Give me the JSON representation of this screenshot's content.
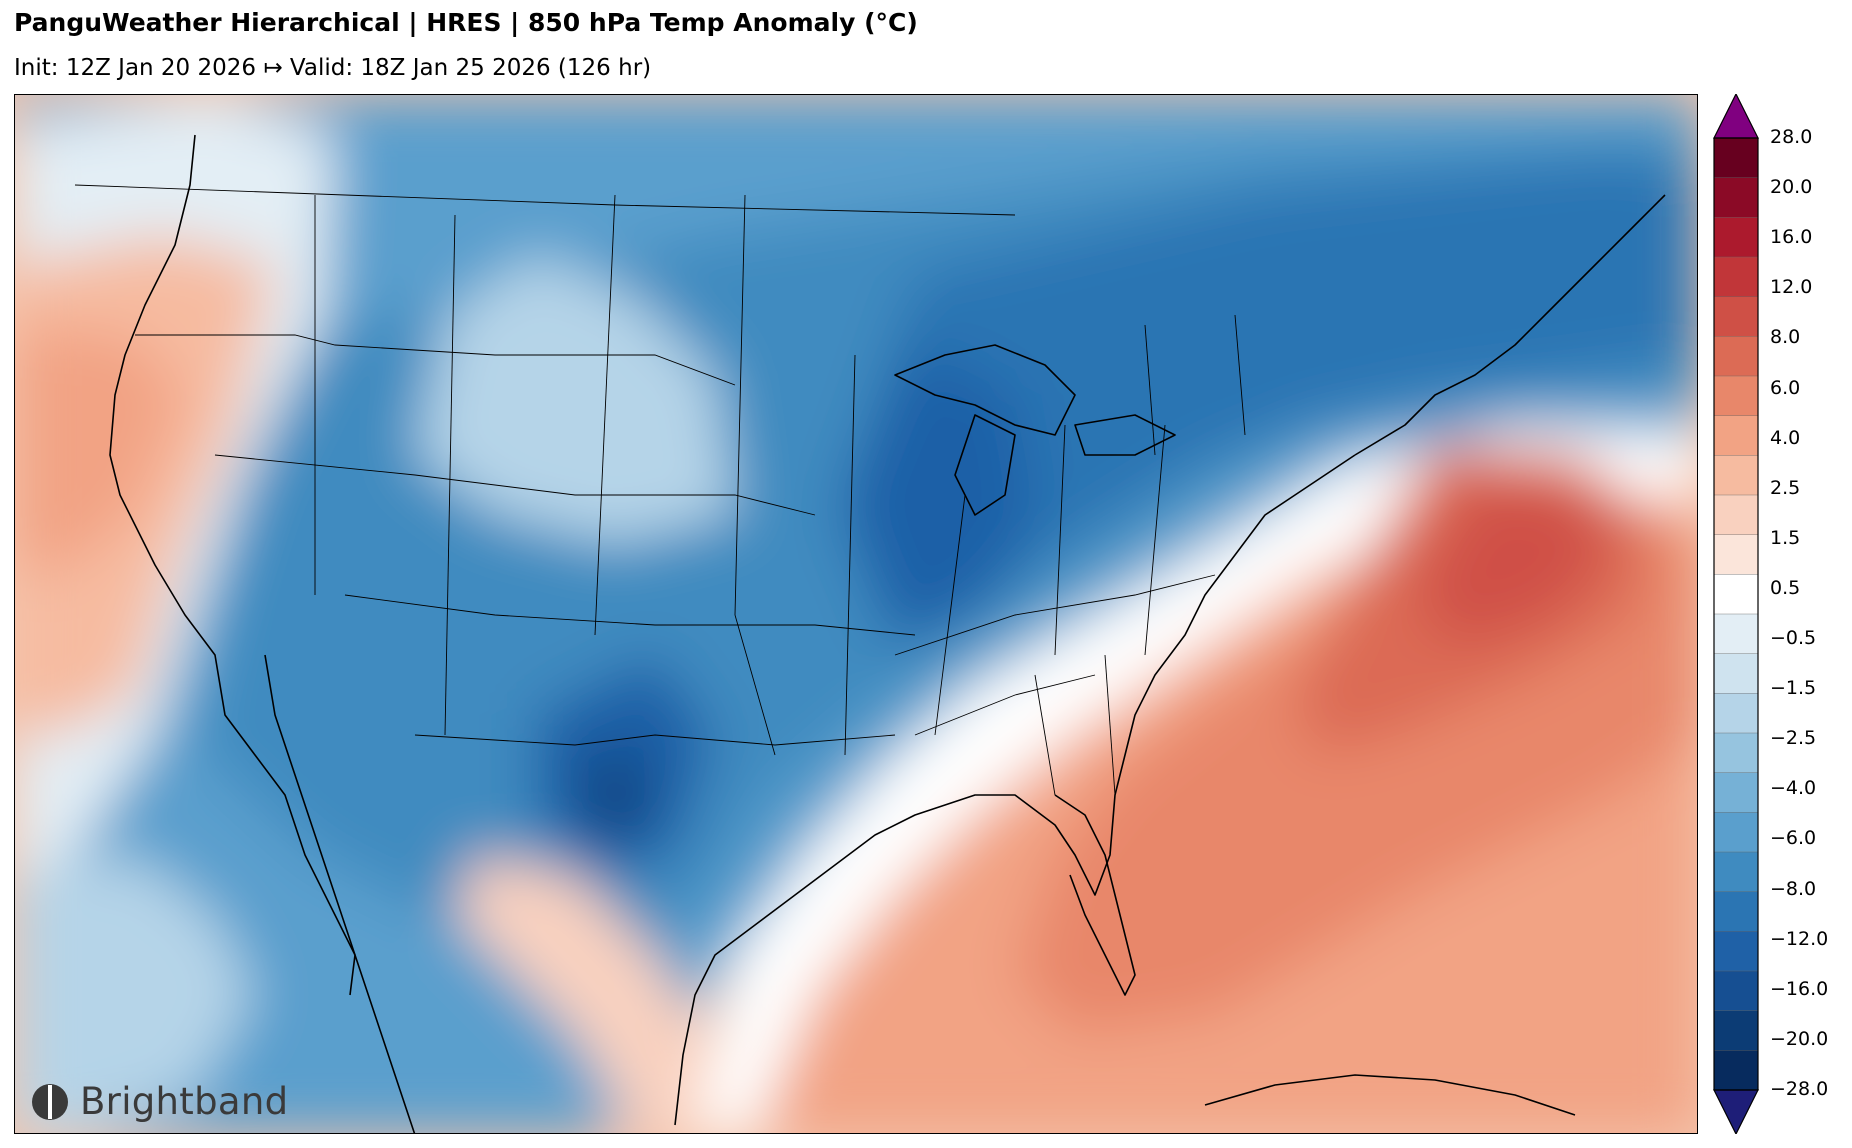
{
  "header": {
    "title": "PanguWeather Hierarchical | HRES | 850 hPa Temp Anomaly (°C)",
    "subtitle": "Init: 12Z Jan 20 2026 ↦ Valid: 18Z Jan 25 2026 (126 hr)"
  },
  "logo": {
    "name": "Brightband",
    "icon": "brightband-logo-icon"
  },
  "colorbar": {
    "tick_labels": [
      "28.0",
      "20.0",
      "16.0",
      "12.0",
      "8.0",
      "6.0",
      "4.0",
      "2.5",
      "1.5",
      "0.5",
      "−0.5",
      "−1.5",
      "−2.5",
      "−4.0",
      "−6.0",
      "−8.0",
      "−12.0",
      "−16.0",
      "−20.0",
      "−28.0"
    ],
    "colors_top_to_bottom": [
      "#67001f",
      "#8b0a26",
      "#ac1a2d",
      "#c13639",
      "#cf5046",
      "#dc6b55",
      "#e8876a",
      "#f2a384",
      "#f6bba0",
      "#f9d1bf",
      "#fbe5da",
      "#ffffff",
      "#e3eef5",
      "#cfe3ef",
      "#b5d4e8",
      "#96c4df",
      "#76b1d6",
      "#5a9fcd",
      "#3f8bc0",
      "#2b75b3",
      "#1f61a7",
      "#164f92",
      "#0c3c75",
      "#072b5e"
    ],
    "extend_max_color": "#800080",
    "extend_min_color": "#1e1e78"
  },
  "map": {
    "region": "Continental United States",
    "cold_anomaly_color": "#2166ac",
    "warm_anomaly_color": "#d6604d",
    "coastline_color": "#000000"
  }
}
